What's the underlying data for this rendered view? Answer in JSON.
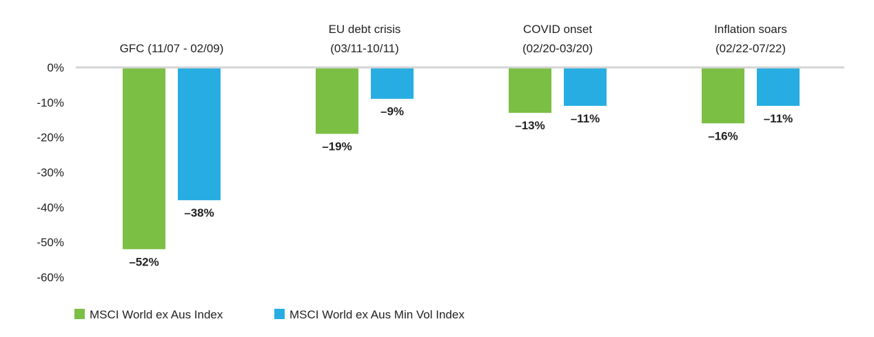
{
  "chart_data": {
    "type": "bar",
    "categories": [
      [
        "GFC (11/07 - 02/09)"
      ],
      [
        "EU debt crisis",
        "(03/11-10/11)"
      ],
      [
        "COVID onset",
        "(02/20-03/20)"
      ],
      [
        "Inflation soars",
        "(02/22-07/22)"
      ]
    ],
    "series": [
      {
        "name": "MSCI World ex Aus Index",
        "color": "#7bbf45",
        "values": [
          -52,
          -19,
          -13,
          -16
        ],
        "labels": [
          "–52%",
          "–19%",
          "–13%",
          "–16%"
        ]
      },
      {
        "name": "MSCI World ex Aus Min Vol Index",
        "color": "#28ade2",
        "values": [
          -38,
          -9,
          -11,
          -11
        ],
        "labels": [
          "–38%",
          "–9%",
          "–11%",
          "–11%"
        ]
      }
    ],
    "yticks": [
      0,
      -10,
      -20,
      -30,
      -40,
      -50,
      -60
    ],
    "ytick_labels": [
      "0%",
      "-10%",
      "-20%",
      "-30%",
      "-40%",
      "-50%",
      "-60%"
    ],
    "ylim": [
      -60,
      0
    ],
    "grid": "zero-line only",
    "gridline_color": "#d4d4d4",
    "legend_placement": "bottom-left"
  }
}
